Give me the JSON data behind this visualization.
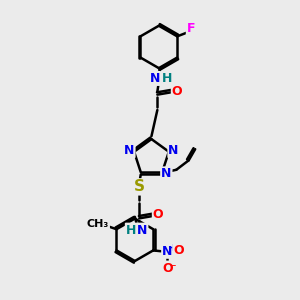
{
  "background_color": "#ebebeb",
  "line_color": "#000000",
  "bond_width": 1.8,
  "atom_colors": {
    "N": "#0000ee",
    "O": "#ff0000",
    "S": "#999900",
    "F": "#ff00ff",
    "H": "#008080",
    "C": "#000000"
  },
  "font_size": 9
}
